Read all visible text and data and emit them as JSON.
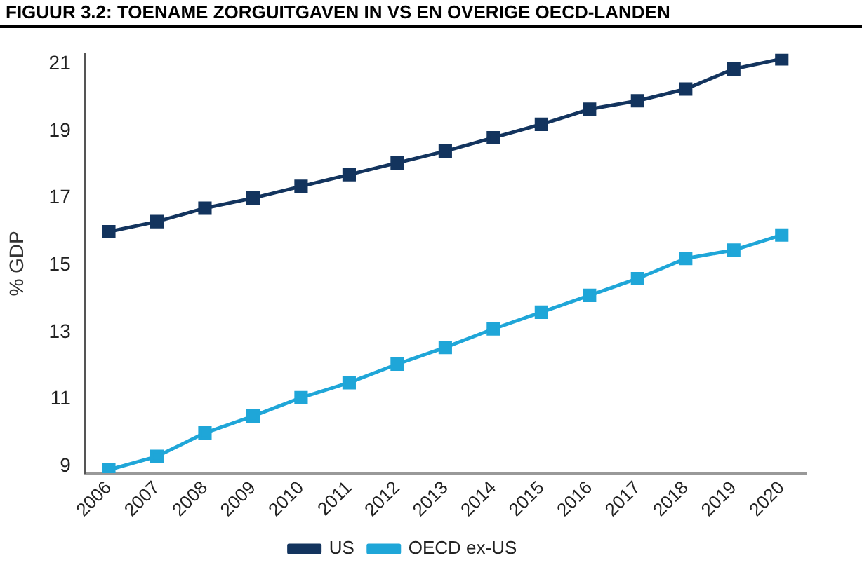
{
  "chart_data": {
    "type": "line",
    "title": "FIGUUR 3.2: TOENAME ZORGUITGAVEN IN VS EN OVERIGE OECD-LANDEN",
    "ylabel": "% GDP",
    "categories": [
      "2006",
      "2007",
      "2008",
      "2009",
      "2010",
      "2011",
      "2012",
      "2013",
      "2014",
      "2015",
      "2016",
      "2017",
      "2018",
      "2019",
      "2020"
    ],
    "series": [
      {
        "name": "US",
        "color": "#13345e",
        "values": [
          16.0,
          16.3,
          16.7,
          17.0,
          17.35,
          17.7,
          18.05,
          18.4,
          18.8,
          19.2,
          19.65,
          19.9,
          20.25,
          20.85,
          21.15
        ]
      },
      {
        "name": "OECD ex-US",
        "color": "#1fa6d8",
        "values": [
          8.9,
          9.3,
          10.0,
          10.5,
          11.05,
          11.5,
          12.05,
          12.55,
          13.1,
          13.6,
          14.1,
          14.6,
          15.2,
          15.45,
          15.9
        ]
      }
    ],
    "ylim": [
      8.8,
      21.3
    ],
    "yticks": [
      9,
      11,
      13,
      15,
      17,
      19,
      21
    ],
    "grid": false,
    "legend": "bottom",
    "marker": "square",
    "line_style": "solid"
  }
}
